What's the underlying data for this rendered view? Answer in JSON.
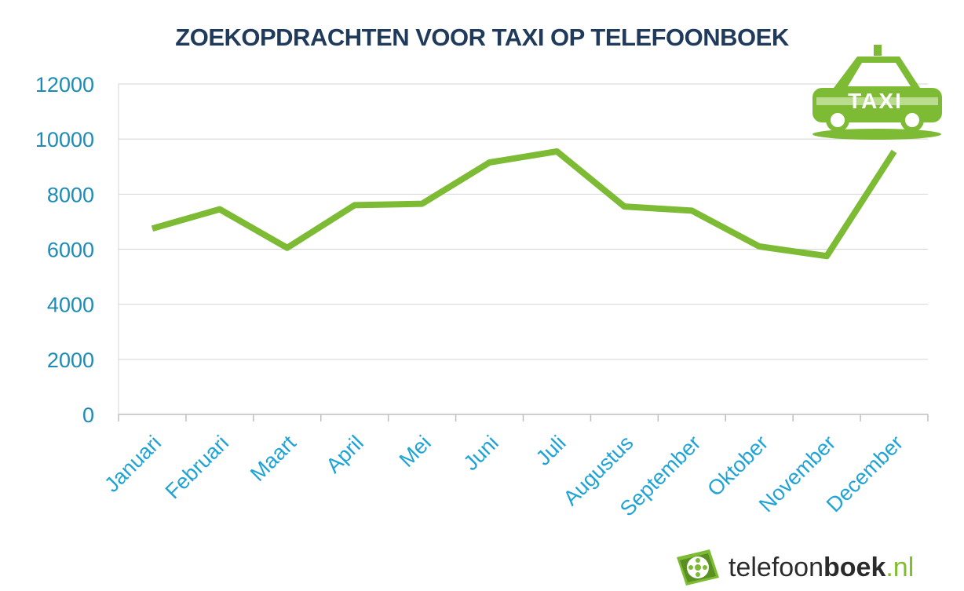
{
  "chart_data": {
    "type": "line",
    "title": "ZOEKOPDRACHTEN VOOR TAXI OP TELEFOONBOEK",
    "categories": [
      "Januari",
      "Februari",
      "Maart",
      "April",
      "Mei",
      "Juni",
      "Juli",
      "Augustus",
      "September",
      "Oktober",
      "November",
      "December"
    ],
    "series": [
      {
        "values": [
          6750,
          7450,
          6050,
          7600,
          7650,
          9150,
          9550,
          7550,
          7400,
          6100,
          5750,
          9550
        ]
      }
    ],
    "yticks": [
      "0",
      "2000",
      "4000",
      "6000",
      "8000",
      "10000",
      "12000"
    ],
    "ylim": [
      0,
      12000
    ],
    "xlabel": "",
    "ylabel": "",
    "grid": true,
    "legend": "none",
    "line_color": "#7dbb35",
    "tick_color": "#1b8bb8",
    "grid_color": "#d4d4d4"
  },
  "taxi_badge": {
    "label": "TAXI",
    "icon": "taxi-icon",
    "color": "#7dbb35"
  },
  "brand": {
    "name_light": "telefoon",
    "name_bold": "boek",
    "tld": ".nl",
    "icon": "film-reel-icon"
  }
}
